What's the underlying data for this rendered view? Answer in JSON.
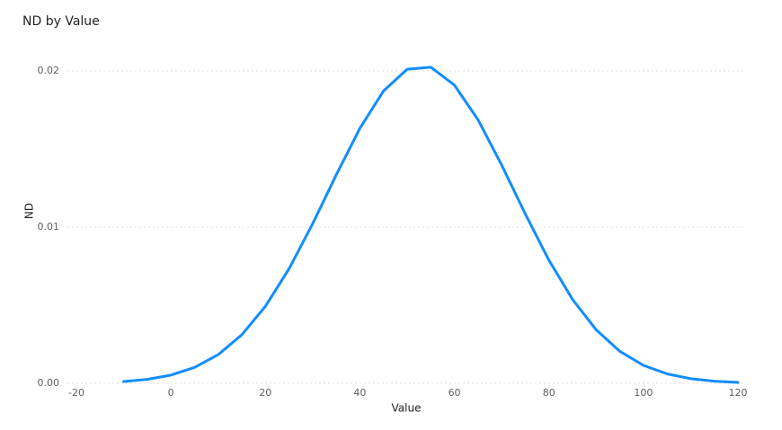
{
  "chart_data": {
    "type": "line",
    "title": "ND by Value",
    "x_label": "Value",
    "y_label": "ND",
    "x": [
      -10,
      -5,
      0,
      5,
      10,
      15,
      20,
      25,
      30,
      35,
      40,
      45,
      50,
      55,
      60,
      65,
      70,
      75,
      80,
      85,
      90,
      95,
      100,
      105,
      110,
      115,
      120
    ],
    "series": [
      {
        "name": "ND",
        "color": "#118dff",
        "values": [
          0.000116,
          0.000255,
          0.000526,
          0.001014,
          0.001834,
          0.003108,
          0.004933,
          0.007334,
          0.01022,
          0.01335,
          0.01633,
          0.01872,
          0.02011,
          0.02024,
          0.01909,
          0.01687,
          0.01397,
          0.01084,
          0.00788,
          0.005367,
          0.003425,
          0.002049,
          0.001148,
          0.000603,
          0.000297,
          0.000137,
          5.9e-05
        ]
      }
    ],
    "xlim": [
      -20,
      120
    ],
    "xticks": [
      -20,
      0,
      20,
      40,
      60,
      80,
      100,
      120
    ],
    "ylim": [
      0,
      0.02
    ],
    "yticks": [
      {
        "value": 0,
        "label": "0.00"
      },
      {
        "value": 0.01,
        "label": "0.01"
      },
      {
        "value": 0.02,
        "label": "0.02"
      }
    ],
    "grid": true
  }
}
